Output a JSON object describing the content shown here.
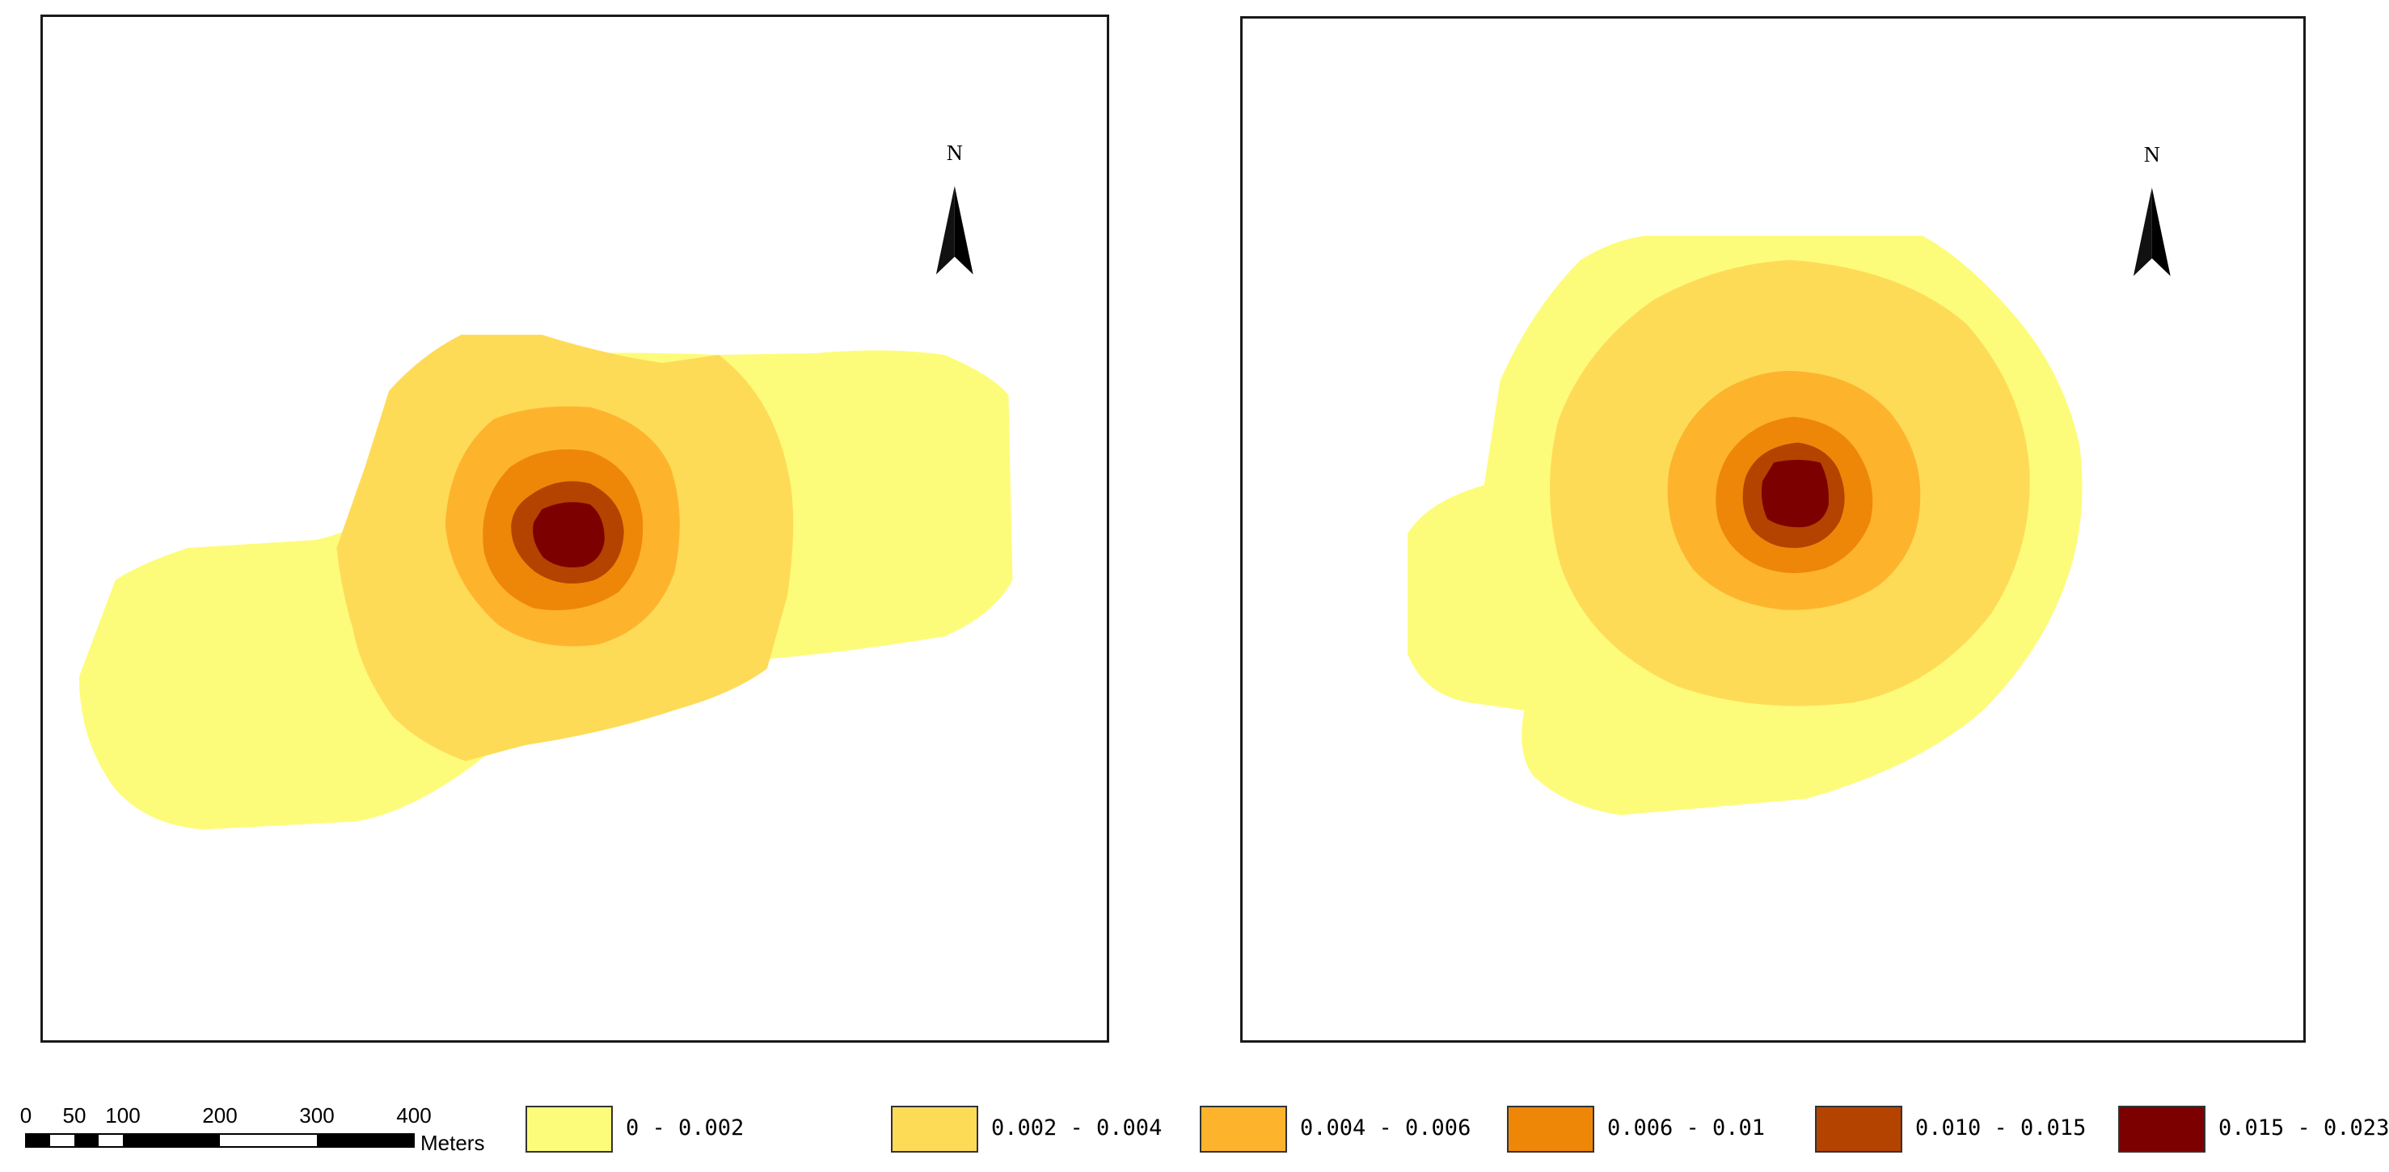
{
  "maps": {
    "left": {
      "north_label": "N"
    },
    "right": {
      "north_label": "N"
    }
  },
  "scale_bar": {
    "ticks": [
      "0",
      "50",
      "100",
      "200",
      "300",
      "400"
    ],
    "unit": "Meters"
  },
  "legend": {
    "items": [
      {
        "label": "0 - 0.002",
        "color": "#FDFC7A"
      },
      {
        "label": "0.002 - 0.004",
        "color": "#FEDB57"
      },
      {
        "label": "0.004 - 0.006",
        "color": "#FDB42C"
      },
      {
        "label": "0.006 - 0.01",
        "color": "#EE8707"
      },
      {
        "label": "0.010 - 0.015",
        "color": "#B44300"
      },
      {
        "label": "0.015 - 0.023",
        "color": "#7D0000"
      }
    ]
  }
}
